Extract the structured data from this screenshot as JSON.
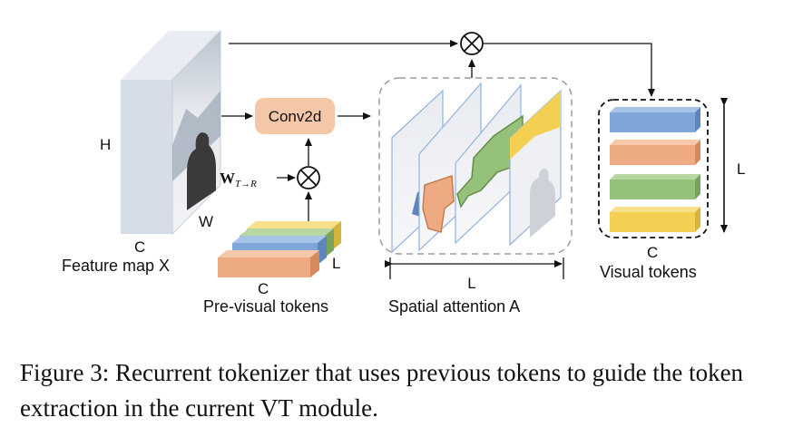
{
  "diagram": {
    "feature_map": {
      "label": "Feature map X",
      "dim_h": "H",
      "dim_w": "W",
      "dim_c": "C"
    },
    "conv": {
      "label": "Conv2d"
    },
    "weight": {
      "label_main": "W",
      "label_sub": "T→R"
    },
    "pre_visual_tokens": {
      "label": "Pre-visual tokens",
      "dim_c": "C",
      "dim_l": "L"
    },
    "spatial_attention": {
      "label": "Spatial attention A",
      "dim_l": "L"
    },
    "visual_tokens": {
      "label": "Visual tokens",
      "dim_c": "C",
      "dim_l": "L"
    },
    "multiply_symbol": "×",
    "colors": {
      "blue": "#7ea6d8",
      "orange": "#eeaa82",
      "green": "#96c17a",
      "yellow": "#f3cf52",
      "conv_fill": "#f4c7a9",
      "cube_front": "#d5dde8"
    }
  },
  "caption": {
    "text": "Figure 3: Recurrent tokenizer that uses previous tokens to guide the token extraction in the current VT module."
  }
}
